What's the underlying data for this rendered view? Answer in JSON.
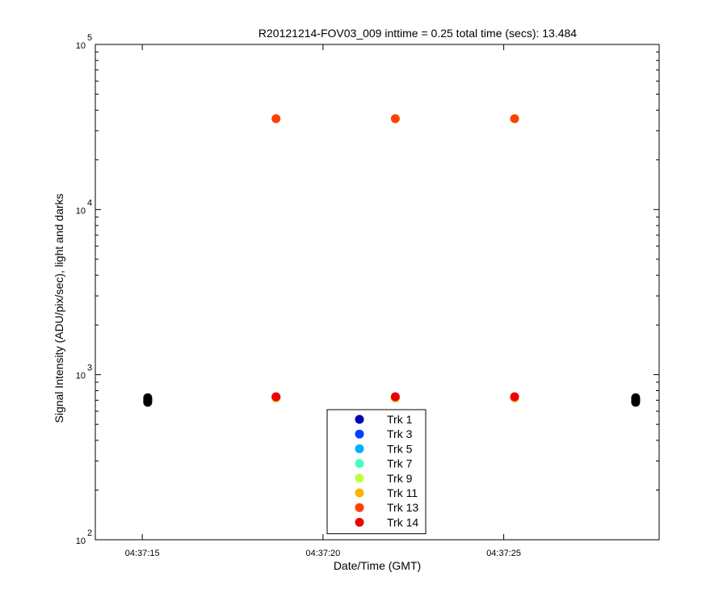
{
  "chart_data": {
    "type": "scatter",
    "title": "R20121214-FOV03_009 inttime = 0.25 total time (secs): 13.484",
    "xlabel": "Date/Time (GMT)",
    "ylabel": "Signal Intensity (ADU/pix/sec), light and darks",
    "y_scale": "log",
    "ylim": [
      100,
      100000
    ],
    "y_ticks": [
      {
        "base": "10",
        "exp": "2",
        "value": 100
      },
      {
        "base": "10",
        "exp": "3",
        "value": 1000
      },
      {
        "base": "10",
        "exp": "4",
        "value": 10000
      },
      {
        "base": "10",
        "exp": "5",
        "value": 100000
      }
    ],
    "x_ticks": [
      "04:37:15",
      "04:37:20",
      "04:37:25"
    ],
    "x_tick_seconds": [
      15,
      20,
      25
    ],
    "xlim_seconds": [
      13.7,
      29.3
    ],
    "legend_location": "bottom-center",
    "grid": false,
    "series": [
      {
        "name": "Trk 1",
        "color": "#0000b0",
        "x": [
          18.7,
          22.0,
          25.3
        ],
        "y": [
          725,
          725,
          725
        ]
      },
      {
        "name": "Trk 3",
        "color": "#0040ff",
        "x": [
          18.7,
          22.0,
          25.3
        ],
        "y": [
          725,
          725,
          725
        ]
      },
      {
        "name": "Trk 5",
        "color": "#00b0ff",
        "x": [
          18.7,
          22.0,
          25.3
        ],
        "y": [
          725,
          725,
          725
        ]
      },
      {
        "name": "Trk 7",
        "color": "#40ffc0",
        "x": [
          18.7,
          22.0,
          25.3
        ],
        "y": [
          725,
          725,
          725
        ]
      },
      {
        "name": "Trk 9",
        "color": "#c0ff40",
        "x": [
          18.7,
          22.0,
          25.3
        ],
        "y": [
          725,
          725,
          725
        ]
      },
      {
        "name": "Trk 11",
        "color": "#ffb000",
        "x": [
          18.7,
          22.0,
          25.3
        ],
        "y": [
          725,
          725,
          725
        ]
      },
      {
        "name": "Trk 13",
        "color": "#ff4000",
        "x": [
          18.7,
          22.0,
          25.3
        ],
        "y": [
          35500,
          35500,
          35500
        ]
      },
      {
        "name": "Trk 14",
        "color": "#ee0000",
        "x": [
          18.7,
          22.0,
          25.3
        ],
        "y": [
          735,
          735,
          735
        ]
      }
    ],
    "darks": {
      "color": "#000000",
      "x": [
        15.15,
        15.15,
        15.15,
        15.15,
        28.65,
        28.65,
        28.65,
        28.65
      ],
      "y": [
        680,
        695,
        710,
        725,
        680,
        695,
        710,
        725
      ]
    }
  }
}
